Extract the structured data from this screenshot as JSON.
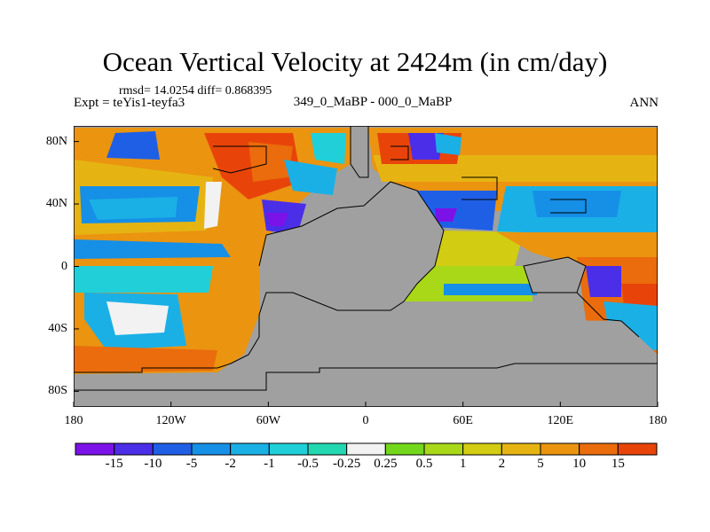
{
  "header": {
    "title": "Ocean Vertical Velocity at 2424m (in cm/day)",
    "stats": "rmsd= 14.0254 diff= 0.868395",
    "expt": "Expt = teYis1-teyfa3",
    "center_label": "349_0_MaBP - 000_0_MaBP",
    "season": "ANN"
  },
  "map": {
    "land_color": "#a0a0a0",
    "lat_ticks": [
      {
        "value": 80,
        "label": "80N"
      },
      {
        "value": 40,
        "label": "40N"
      },
      {
        "value": 0,
        "label": "0"
      },
      {
        "value": -40,
        "label": "40S"
      },
      {
        "value": -80,
        "label": "80S"
      }
    ],
    "lon_ticks": [
      {
        "value": -180,
        "label": "180"
      },
      {
        "value": -120,
        "label": "120W"
      },
      {
        "value": -60,
        "label": "60W"
      },
      {
        "value": 0,
        "label": "0"
      },
      {
        "value": 60,
        "label": "60E"
      },
      {
        "value": 120,
        "label": "120E"
      },
      {
        "value": 180,
        "label": "180"
      }
    ]
  },
  "colorbar": {
    "colors": [
      "#7b12e8",
      "#4b2ee8",
      "#1f5fe6",
      "#168fe6",
      "#1ab0e6",
      "#20cfd8",
      "#23d7b0",
      "#f2f2f2",
      "#73d81c",
      "#a8d818",
      "#d2cc12",
      "#e6b412",
      "#ea9410",
      "#ea6c0c",
      "#e8440a"
    ],
    "labels": [
      "-15",
      "-10",
      "-5",
      "-2",
      "-1",
      "-0.5",
      "-0.25",
      "0.25",
      "0.5",
      "1",
      "2",
      "5",
      "10",
      "15"
    ]
  }
}
